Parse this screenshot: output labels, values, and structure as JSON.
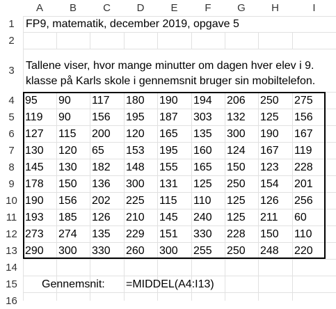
{
  "columns": [
    "A",
    "B",
    "C",
    "D",
    "E",
    "F",
    "G",
    "H",
    "I"
  ],
  "rows": [
    "1",
    "2",
    "3",
    "4",
    "5",
    "6",
    "7",
    "8",
    "9",
    "10",
    "11",
    "12",
    "13",
    "14",
    "15",
    "16"
  ],
  "title": "FP9, matematik, december 2019, opgave 5",
  "description": "Tallene viser, hvor mange minutter om dagen hver elev i 9. klasse på Karls skole i gennemsnit bruger sin mobiltelefon.",
  "data_rows": [
    [
      "95",
      "90",
      "117",
      "180",
      "190",
      "194",
      "206",
      "250",
      "275"
    ],
    [
      "119",
      "90",
      "156",
      "195",
      "187",
      "303",
      "132",
      "125",
      "156"
    ],
    [
      "127",
      "115",
      "200",
      "120",
      "165",
      "135",
      "300",
      "190",
      "167"
    ],
    [
      "130",
      "120",
      "65",
      "153",
      "195",
      "160",
      "124",
      "167",
      "119"
    ],
    [
      "145",
      "130",
      "182",
      "148",
      "155",
      "165",
      "150",
      "123",
      "228"
    ],
    [
      "178",
      "150",
      "136",
      "300",
      "131",
      "125",
      "250",
      "154",
      "201"
    ],
    [
      "190",
      "156",
      "202",
      "225",
      "115",
      "110",
      "125",
      "126",
      "256"
    ],
    [
      "193",
      "185",
      "126",
      "210",
      "145",
      "240",
      "125",
      "211",
      "60"
    ],
    [
      "273",
      "274",
      "135",
      "229",
      "151",
      "330",
      "228",
      "150",
      "110"
    ],
    [
      "290",
      "300",
      "330",
      "260",
      "300",
      "255",
      "250",
      "248",
      "220"
    ]
  ],
  "avg_label": "Gennemsnit:",
  "avg_formula": "=MIDDEL(A4:I13)"
}
